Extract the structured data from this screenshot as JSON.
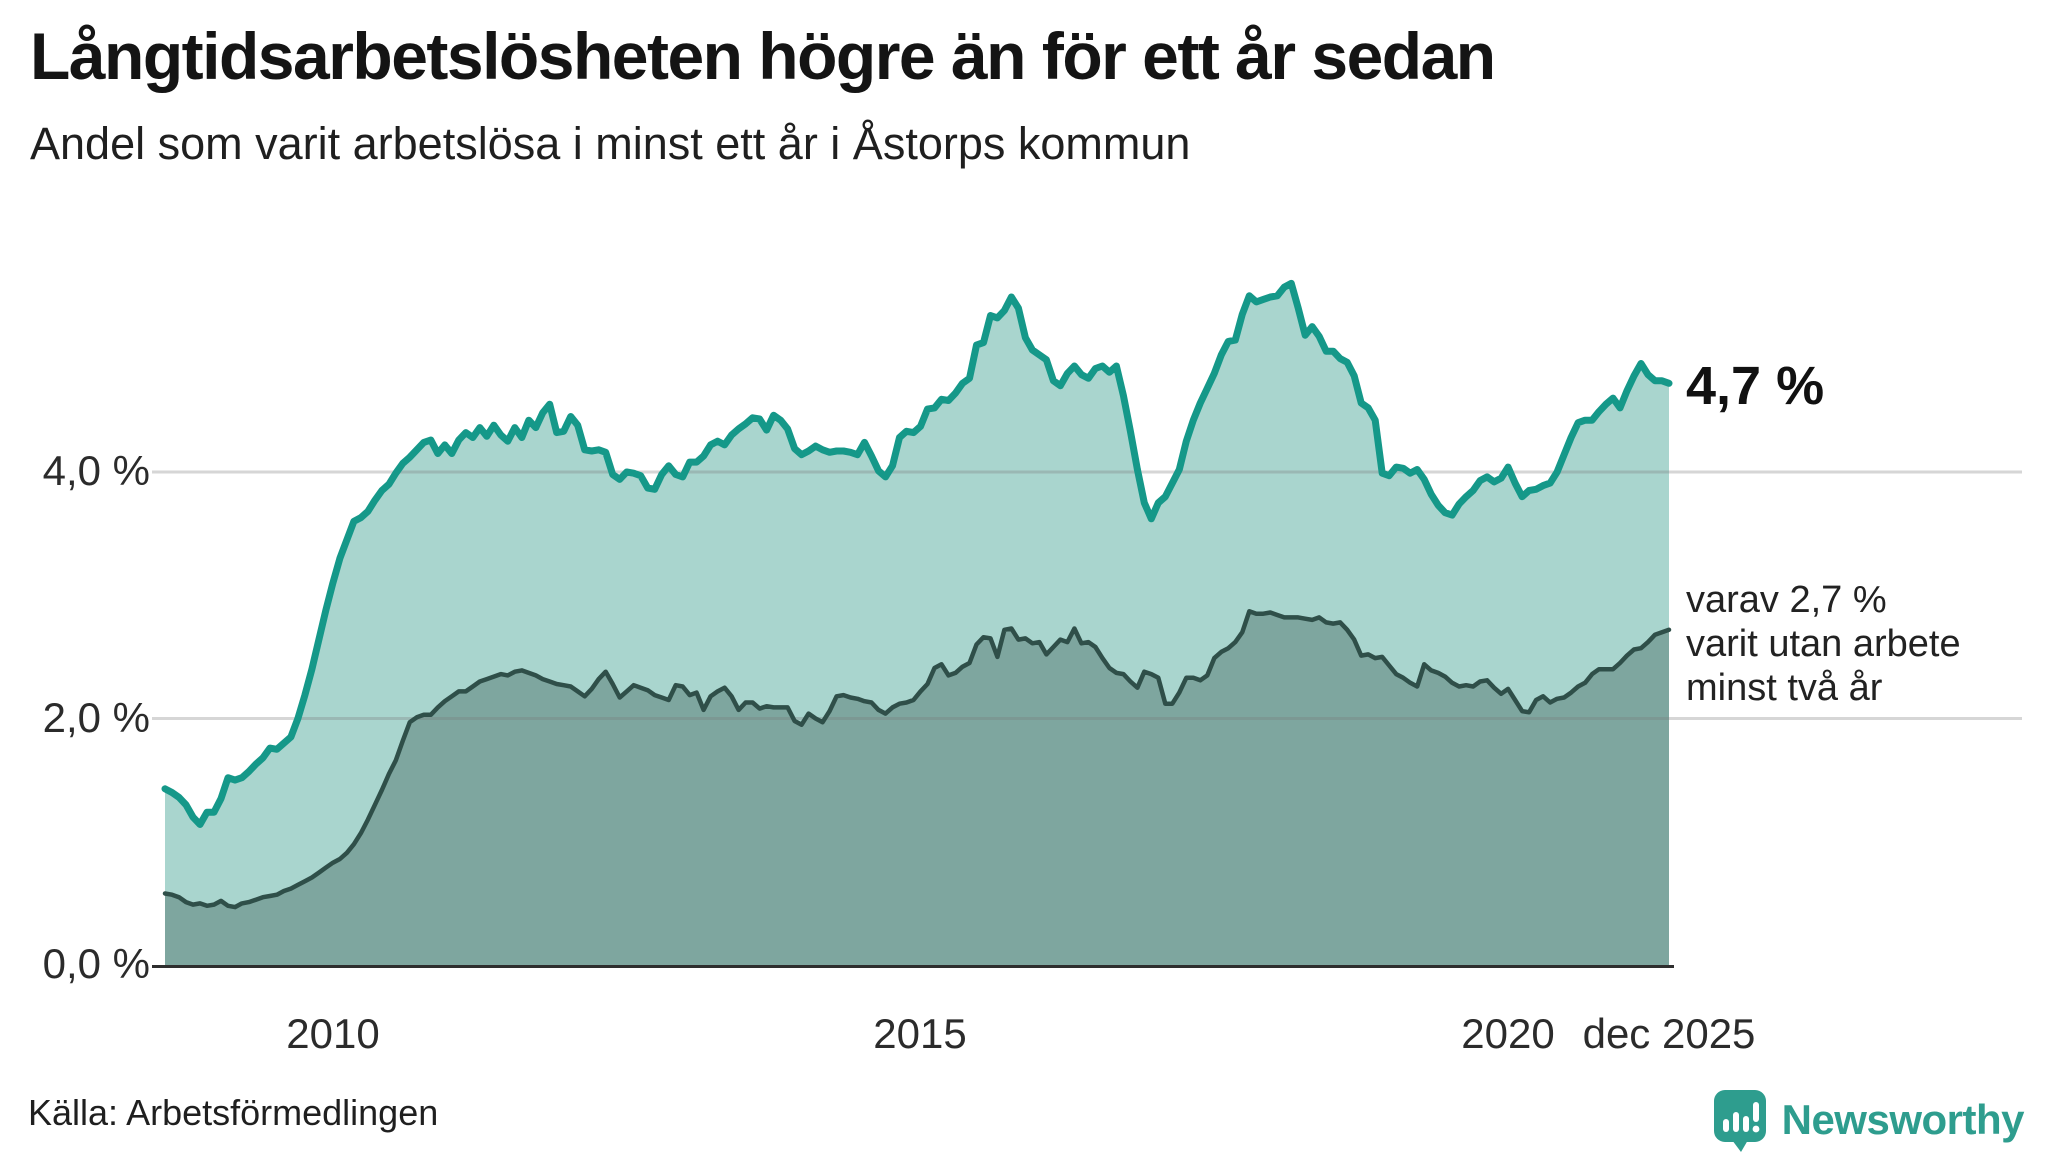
{
  "header": {
    "title": "Långtidsarbetslösheten högre än för ett år sedan",
    "subtitle": "Andel som varit arbetslösa i minst ett år i Åstorps kommun"
  },
  "chart_data": {
    "type": "area",
    "title": "Långtidsarbetslösheten högre än för ett år sedan",
    "subtitle": "Andel som varit arbetslösa i minst ett år i Åstorps kommun",
    "unit": "%",
    "x_start": "jan 2008",
    "x_end": "dec 2025",
    "months_per_point": 1,
    "ylim": [
      0,
      5.8
    ],
    "grid_values": [
      2,
      4
    ],
    "legend_position": "none",
    "series": [
      {
        "id": "minst_ett_ar",
        "end_value_label": "4,7 %",
        "end_value": 4.7,
        "line_color": "#159889",
        "fill_color": "#A9D5CE",
        "values": [
          1.43,
          1.4,
          1.36,
          1.3,
          1.2,
          1.14,
          1.24,
          1.24,
          1.35,
          1.52,
          1.5,
          1.52,
          1.57,
          1.63,
          1.68,
          1.76,
          1.75,
          1.8,
          1.85,
          2.0,
          2.19,
          2.4,
          2.64,
          2.88,
          3.1,
          3.3,
          3.45,
          3.6,
          3.63,
          3.68,
          3.77,
          3.85,
          3.9,
          3.99,
          4.07,
          4.12,
          4.18,
          4.24,
          4.26,
          4.15,
          4.22,
          4.15,
          4.26,
          4.32,
          4.28,
          4.36,
          4.29,
          4.38,
          4.3,
          4.25,
          4.36,
          4.28,
          4.42,
          4.36,
          4.48,
          4.55,
          4.32,
          4.33,
          4.45,
          4.38,
          4.18,
          4.17,
          4.18,
          4.16,
          3.98,
          3.94,
          4.0,
          3.99,
          3.97,
          3.87,
          3.86,
          3.98,
          4.05,
          3.98,
          3.96,
          4.08,
          4.08,
          4.13,
          4.22,
          4.25,
          4.22,
          4.3,
          4.35,
          4.39,
          4.44,
          4.43,
          4.34,
          4.46,
          4.42,
          4.35,
          4.19,
          4.14,
          4.17,
          4.21,
          4.18,
          4.16,
          4.17,
          4.17,
          4.16,
          4.14,
          4.24,
          4.13,
          4.01,
          3.96,
          4.05,
          4.28,
          4.33,
          4.32,
          4.37,
          4.51,
          4.52,
          4.59,
          4.58,
          4.64,
          4.72,
          4.76,
          5.03,
          5.05,
          5.27,
          5.25,
          5.31,
          5.42,
          5.33,
          5.09,
          4.99,
          4.95,
          4.91,
          4.74,
          4.7,
          4.8,
          4.86,
          4.79,
          4.76,
          4.84,
          4.86,
          4.81,
          4.86,
          4.62,
          4.33,
          4.02,
          3.75,
          3.62,
          3.75,
          3.8,
          3.91,
          4.02,
          4.25,
          4.42,
          4.56,
          4.68,
          4.8,
          4.95,
          5.06,
          5.07,
          5.28,
          5.43,
          5.38,
          5.4,
          5.42,
          5.43,
          5.5,
          5.53,
          5.33,
          5.11,
          5.18,
          5.1,
          4.98,
          4.98,
          4.92,
          4.89,
          4.78,
          4.56,
          4.52,
          4.42,
          3.99,
          3.97,
          4.04,
          4.03,
          3.99,
          4.02,
          3.94,
          3.82,
          3.73,
          3.67,
          3.65,
          3.74,
          3.8,
          3.85,
          3.93,
          3.96,
          3.92,
          3.95,
          4.04,
          3.91,
          3.8,
          3.85,
          3.86,
          3.89,
          3.91,
          4.0,
          4.14,
          4.28,
          4.4,
          4.42,
          4.42,
          4.49,
          4.55,
          4.6,
          4.52,
          4.66,
          4.78,
          4.88,
          4.79,
          4.74,
          4.74,
          4.72
        ]
      },
      {
        "id": "minst_tva_ar",
        "end_value_label": "varav 2,7 %",
        "end_value": 2.7,
        "line_color": "#2F4F49",
        "fill_color": "#7EA69F",
        "values": [
          0.58,
          0.57,
          0.55,
          0.51,
          0.49,
          0.5,
          0.48,
          0.49,
          0.52,
          0.48,
          0.47,
          0.5,
          0.51,
          0.53,
          0.55,
          0.56,
          0.57,
          0.6,
          0.62,
          0.65,
          0.68,
          0.71,
          0.75,
          0.79,
          0.83,
          0.86,
          0.91,
          0.98,
          1.07,
          1.18,
          1.3,
          1.42,
          1.55,
          1.66,
          1.82,
          1.97,
          2.01,
          2.03,
          2.03,
          2.09,
          2.14,
          2.18,
          2.22,
          2.22,
          2.26,
          2.3,
          2.32,
          2.34,
          2.36,
          2.35,
          2.38,
          2.39,
          2.37,
          2.35,
          2.32,
          2.3,
          2.28,
          2.27,
          2.26,
          2.22,
          2.18,
          2.24,
          2.32,
          2.38,
          2.28,
          2.17,
          2.22,
          2.27,
          2.25,
          2.23,
          2.19,
          2.17,
          2.15,
          2.27,
          2.26,
          2.19,
          2.21,
          2.07,
          2.18,
          2.22,
          2.25,
          2.18,
          2.07,
          2.13,
          2.13,
          2.08,
          2.1,
          2.09,
          2.09,
          2.09,
          1.98,
          1.95,
          2.04,
          2.0,
          1.97,
          2.06,
          2.18,
          2.19,
          2.17,
          2.16,
          2.14,
          2.13,
          2.07,
          2.04,
          2.09,
          2.12,
          2.13,
          2.15,
          2.22,
          2.28,
          2.41,
          2.44,
          2.35,
          2.37,
          2.42,
          2.45,
          2.6,
          2.66,
          2.65,
          2.5,
          2.72,
          2.73,
          2.64,
          2.65,
          2.61,
          2.62,
          2.52,
          2.58,
          2.64,
          2.62,
          2.73,
          2.61,
          2.62,
          2.58,
          2.49,
          2.41,
          2.37,
          2.36,
          2.3,
          2.25,
          2.38,
          2.36,
          2.33,
          2.12,
          2.12,
          2.21,
          2.33,
          2.33,
          2.31,
          2.35,
          2.49,
          2.54,
          2.57,
          2.62,
          2.7,
          2.87,
          2.85,
          2.85,
          2.86,
          2.84,
          2.82,
          2.82,
          2.82,
          2.81,
          2.8,
          2.82,
          2.78,
          2.77,
          2.78,
          2.72,
          2.64,
          2.51,
          2.52,
          2.49,
          2.5,
          2.43,
          2.36,
          2.33,
          2.29,
          2.26,
          2.44,
          2.39,
          2.37,
          2.34,
          2.29,
          2.26,
          2.27,
          2.26,
          2.3,
          2.31,
          2.25,
          2.2,
          2.24,
          2.15,
          2.06,
          2.05,
          2.15,
          2.18,
          2.13,
          2.16,
          2.17,
          2.21,
          2.26,
          2.29,
          2.36,
          2.4,
          2.4,
          2.4,
          2.45,
          2.51,
          2.56,
          2.57,
          2.62,
          2.68,
          2.7,
          2.72
        ]
      }
    ]
  },
  "axes": {
    "y_ticks": [
      {
        "label": "0,0 %",
        "value": 0
      },
      {
        "label": "2,0 %",
        "value": 2
      },
      {
        "label": "4,0 %",
        "value": 4
      }
    ],
    "x_ticks": [
      {
        "label": "2010",
        "month_index": 24
      },
      {
        "label": "2015",
        "month_index": 108
      },
      {
        "label": "2020",
        "month_index": 192
      },
      {
        "label": "dec 2025",
        "month_index": 215
      }
    ]
  },
  "annotations": {
    "total_end_label": "4,7 %",
    "two_year_lines": [
      "varav 2,7 %",
      "varit utan arbete",
      "minst två år"
    ]
  },
  "footer": {
    "source": "Källa: Arbetsförmedlingen",
    "brand": "Newsworthy"
  },
  "colors": {
    "teal_line": "#159889",
    "teal_fill": "#A9D5CE",
    "dark_line": "#2F4F49",
    "dark_fill": "#7EA69F",
    "gridline": "#E2E2E2",
    "baseline": "#2E2E2E",
    "brand_teal": "#2E9D8E",
    "text": "#1F1F1F"
  }
}
